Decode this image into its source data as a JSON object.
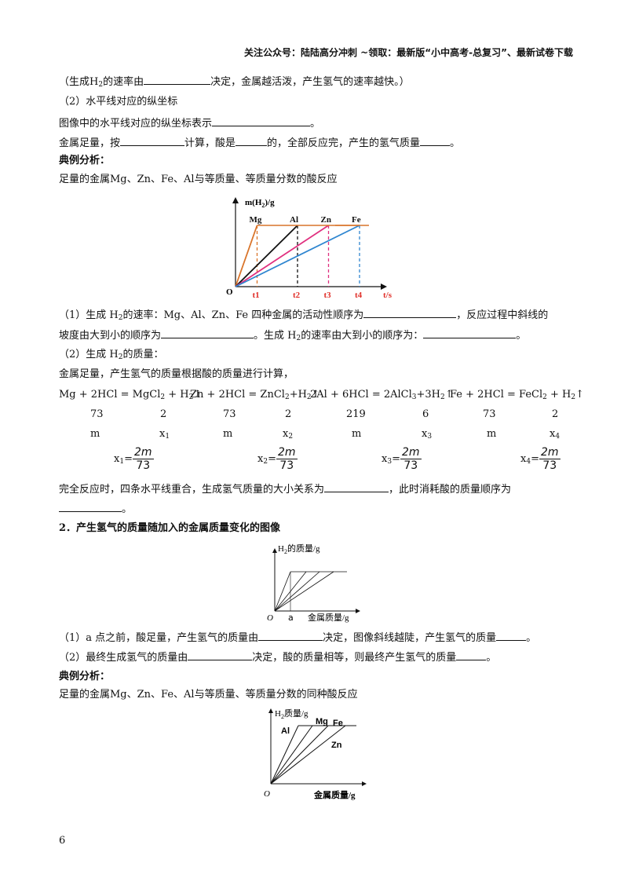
{
  "header": {
    "text": "关注公众号：陆陆高分冲刺  ~领取：最新版“小中高考-总复习”、最新试卷下载"
  },
  "lines": {
    "l1a": "（生成H",
    "l1b": "2",
    "l1c": "的速率由",
    "l1d": "决定，金属越活泼，产生氢气的速率越快。）",
    "l2": "（2）水平线对应的纵坐标",
    "l3a": "图像中的水平线对应的纵坐标表示",
    "l3b": "。",
    "l4a": "金属足量，按",
    "l4b": "计算，酸是",
    "l4c": "的，全部反应完，产生的氢气质量",
    "l4d": "。",
    "h1": "典例分析：",
    "l5": "足量的金属Mg、Zn、Fe、Al与等质量、等质量分数的酸反应",
    "q1a": "（1）生成 H",
    "q1b": "2",
    "q1c": "的速率：Mg、Al、Zn、Fe 四种金属的活动性顺序为",
    "q1d": "，反应过程中斜线的",
    "q1e": "坡度由大到小的顺序为",
    "q1f": "。生成 H",
    "q1g": "2",
    "q1h": "的速率由大到小的顺序为：",
    "q1i": "。",
    "q2a": "（2）生成 H",
    "q2b": "2",
    "q2c": "的质量：",
    "q2d": "金属足量，产生氢气的质量根据酸的质量进行计算，",
    "done_a": "完全反应时，四条水平线重合，生成氢气质量的大小关系为",
    "done_b": "，此时消耗酸的质量顺序为",
    "done_c": "。",
    "sec2": "2．产生氢气的质量随加入的金属质量变化的图像",
    "p1a": "（1）a 点之前，酸足量，产生氢气的质量由",
    "p1b": "决定，图像斜线越陡，产生氢气的质量",
    "p1c": "。",
    "p2a": "（2）最终生成氢气的质量由",
    "p2b": "决定，酸的质量相等，则最终产生氢气的质量",
    "p2c": "。",
    "h2": "典例分析：",
    "l6": "足量的金属Mg、Zn、Fe、Al与等质量、等质量分数的同种酸反应"
  },
  "equations": {
    "eq1": [
      "Mg + 2HCl = MgCl",
      "2",
      " + H",
      "2",
      "↑"
    ],
    "eq2": [
      "Zn + 2HCl = ZnCl",
      "2",
      "+H",
      "2",
      "↑"
    ],
    "eq3": [
      "2Al + 6HCl = 2AlCl",
      "3",
      "+3H",
      "2",
      "↑"
    ],
    "eq4": [
      "Fe + 2HCl = FeCl",
      "2",
      " + H",
      "2",
      "↑"
    ],
    "nums_a": [
      "73",
      "2",
      "73",
      "2",
      "219",
      "6",
      "73",
      "2"
    ],
    "m_label": "m",
    "x_labels": [
      [
        "x",
        "1"
      ],
      [
        "x",
        "2"
      ],
      [
        "x",
        "3"
      ],
      [
        "x",
        "4"
      ]
    ],
    "frac_num": "2m",
    "frac_den": "73",
    "frac_eq": "="
  },
  "chart1": {
    "ylabel_a": "m(H",
    "ylabel_b": "2",
    "ylabel_c": ")/g",
    "xlabel": "t/s",
    "origin": "O",
    "series": [
      {
        "name": "Mg",
        "color": "#d9742a",
        "t_label": "t1",
        "t": 1
      },
      {
        "name": "Al",
        "color": "#111111",
        "t_label": "t2",
        "t": 2
      },
      {
        "name": "Zn",
        "color": "#e0307f",
        "t_label": "t3",
        "t": 3
      },
      {
        "name": "Fe",
        "color": "#2f86d0",
        "t_label": "t4",
        "t": 4
      }
    ],
    "plateau_color": "#d9742a",
    "tick_color": "#e0302a"
  },
  "chart2": {
    "ylabel_a": "H",
    "ylabel_b": "2",
    "ylabel_c": "的质量/g",
    "xlabel": "金属质量/g",
    "origin": "O",
    "a_label": "a"
  },
  "chart3": {
    "ylabel_a": "H",
    "ylabel_b": "2",
    "ylabel_c": "质量/g",
    "xlabel": "金属质量/g",
    "origin": "O",
    "labels": [
      "Al",
      "Mg",
      "Fe",
      "Zn"
    ]
  },
  "page_number": "6"
}
